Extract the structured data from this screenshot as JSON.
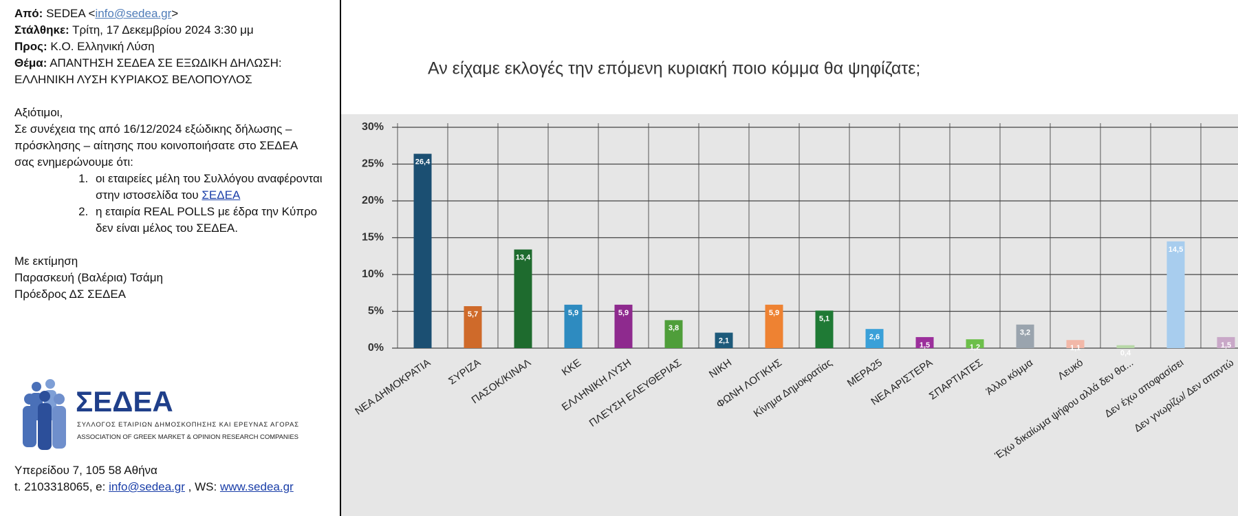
{
  "email": {
    "header": {
      "from_label": "Από:",
      "from_name": "SEDEA <",
      "from_email": "info@sedea.gr",
      "from_close": ">",
      "sent_label": "Στάλθηκε:",
      "sent": "Τρίτη, 17 Δεκεμβρίου 2024 3:30 μμ",
      "to_label": "Προς:",
      "to": "Κ.Ο. Ελληνική Λύση",
      "subject_label": "Θέμα:",
      "subject": "ΑΠΑΝΤΗΣΗ ΣΕΔΕΑ ΣΕ ΕΞΩΔΙΚΗ ΔΗΛΩΣΗ: ΕΛΛΗΝΙΚΗ ΛΥΣΗ ΚΥΡΙΑΚΟΣ ΒΕΛΟΠΟΥΛΟΣ"
    },
    "body": {
      "greeting": "Αξιότιμοι,",
      "intro": "Σε συνέχεια της από 16/12/2024 εξώδικης δήλωσης – πρόσκλησης – αίτησης  που κοινοποιήσατε στο ΣΕΔΕΑ σας ενημερώνουμε ότι:",
      "item1_text": "οι εταιρείες μέλη του Συλλόγου αναφέρονται στην ιστοσελίδα του",
      "item1_link": "ΣΕΔΕΑ",
      "item2_text": "η εταιρία REAL POLLS με έδρα την Κύπρο δεν είναι μέλος του ΣΕΔΕΑ."
    },
    "signoff": [
      "Με εκτίμηση",
      "Παρασκευή (Βαλέρια) Τσάμη",
      "Πρόεδρος ΔΣ ΣΕΔΕΑ"
    ],
    "logo": {
      "name": "ΣΕΔΕΑ",
      "line1": "ΣΥΛΛΟΓΟΣ ΕΤΑΙΡΙΩΝ ΔΗΜΟΣΚΟΠΗΣΗΣ ΚΑΙ ΕΡΕΥΝΑΣ ΑΓΟΡΑΣ",
      "line2": "ASSOCIATION OF GREEK MARKET & OPINION RESEARCH COMPANIES"
    },
    "footer": {
      "address": "Υπερείδου 7, 105 58 Αθήνα",
      "contact": "t. 2103318065, e:",
      "email": "info@sedea.gr",
      "separator": ", WS:",
      "web": "www.sedea.gr"
    }
  },
  "chart_data": {
    "type": "bar",
    "title": "Αν είχαμε εκλογές την επόμενη κυριακή ποιο κόμμα θα ψηφίζατε;",
    "categories": [
      "ΝΕΑ ΔΗΜΟΚΡΑΤΙΑ",
      "ΣΥΡΙΖΑ",
      "ΠΑΣΟΚ/ΚΙΝΑΛ",
      "ΚΚΕ",
      "ΕΛΛΗΝΙΚΗ ΛΥΣΗ",
      "ΠΛΕΥΣΗ ΕΛΕΥΘΕΡΙΑΣ",
      "ΝΙΚΗ",
      "ΦΩΝΗ ΛΟΓΙΚΗΣ",
      "Κίνημα Δημοκρατίας",
      "ΜΕΡΑ25",
      "ΝΕΑ ΑΡΙΣΤΕΡΑ",
      "ΣΠΑΡΤΙΑΤΕΣ",
      "Άλλο κόμμα",
      "Λευκό",
      "Έχω δικαίωμα ψήφου αλλά δεν θα...",
      "Δεν έχω αποφασίσει",
      "Δεν γνωρίζω/ Δεν απαντώ"
    ],
    "values": [
      26.4,
      5.7,
      13.4,
      5.9,
      5.9,
      3.8,
      2.1,
      5.9,
      5.1,
      2.6,
      1.5,
      1.2,
      3.2,
      1.1,
      0.4,
      14.5,
      1.5
    ],
    "value_labels": [
      "26,4",
      "5,7",
      "13,4",
      "5,9",
      "5,9",
      "3,8",
      "2,1",
      "5,9",
      "5,1",
      "2,6",
      "1,5",
      "1,2",
      "3,2",
      "1,1",
      "0,4",
      "14,5",
      "1,5"
    ],
    "colors": [
      "#1b4f72",
      "#cf6a2a",
      "#1e6b2e",
      "#2e8bc0",
      "#8e2a8e",
      "#4f9e3a",
      "#1d5a7a",
      "#ee8232",
      "#1f7a35",
      "#3aa0d8",
      "#9b2f9b",
      "#6cbf4a",
      "#9aa4ae",
      "#f2b8a8",
      "#b8d8a8",
      "#a8cdee",
      "#c9a8c8"
    ],
    "ylim": [
      0,
      30
    ],
    "yticks": [
      {
        "value": 0,
        "label": "0%"
      },
      {
        "value": 5,
        "label": "5%"
      },
      {
        "value": 10,
        "label": "10%"
      },
      {
        "value": 15,
        "label": "15%"
      },
      {
        "value": 20,
        "label": "20%"
      },
      {
        "value": 25,
        "label": "25%"
      },
      {
        "value": 30,
        "label": "30%"
      }
    ],
    "grid": true
  }
}
